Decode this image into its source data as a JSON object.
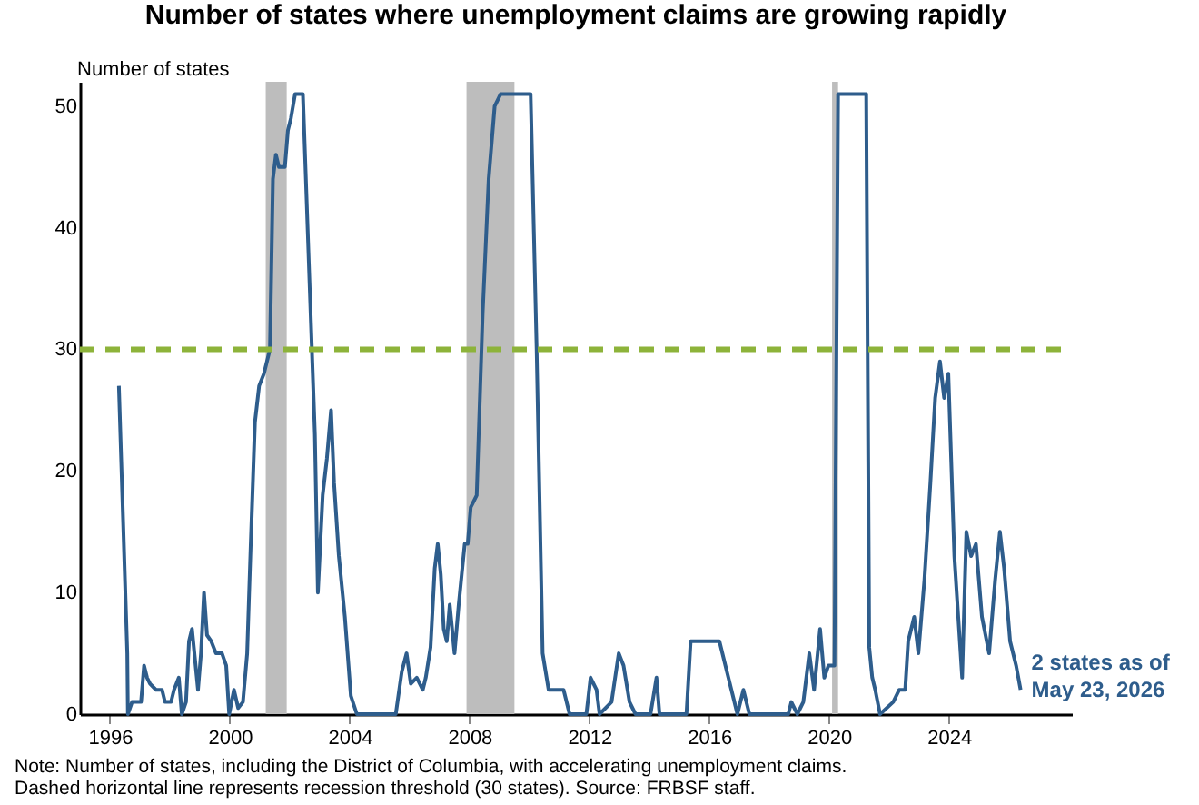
{
  "chart_data": {
    "type": "line",
    "title": "Number of states where unemployment claims are growing rapidly",
    "ylabel": "Number of states",
    "xlim": [
      1995,
      2028.1
    ],
    "xticks": [
      1996,
      2000,
      2004,
      2008,
      2012,
      2016,
      2020,
      2024
    ],
    "ylim": [
      0,
      52
    ],
    "yticks": [
      0,
      10,
      20,
      30,
      40,
      50
    ],
    "series": [
      {
        "color": "#2e5d8c",
        "line_style": "solid",
        "x": [
          1996.3,
          1996.44,
          1996.58,
          1996.6,
          1996.74,
          1997.04,
          1997.14,
          1997.24,
          1997.34,
          1997.54,
          1997.74,
          1997.84,
          1998.04,
          1998.14,
          1998.3,
          1998.4,
          1998.54,
          1998.64,
          1998.74,
          1998.94,
          1999.04,
          1999.14,
          1999.24,
          1999.38,
          1999.54,
          1999.74,
          1999.88,
          1999.98,
          2000.14,
          2000.28,
          2000.44,
          2000.58,
          2000.7,
          2000.84,
          2000.98,
          2001.14,
          2001.34,
          2001.44,
          2001.54,
          2001.64,
          2001.84,
          2001.94,
          2002.04,
          2002.18,
          2002.44,
          2002.64,
          2002.84,
          2002.94,
          2003.1,
          2003.24,
          2003.38,
          2003.48,
          2003.64,
          2003.84,
          2004.04,
          2004.24,
          2005.54,
          2005.74,
          2005.9,
          2006.04,
          2006.24,
          2006.44,
          2006.54,
          2006.7,
          2006.84,
          2006.94,
          2007.04,
          2007.14,
          2007.24,
          2007.34,
          2007.5,
          2007.64,
          2007.84,
          2007.94,
          2008.04,
          2008.24,
          2008.44,
          2008.64,
          2008.84,
          2009.04,
          2010.04,
          2010.24,
          2010.44,
          2010.64,
          2011.14,
          2011.34,
          2011.9,
          2012.04,
          2012.24,
          2012.34,
          2012.74,
          2012.98,
          2013.14,
          2013.34,
          2013.54,
          2014.04,
          2014.24,
          2014.34,
          2015.24,
          2015.38,
          2016.34,
          2016.54,
          2016.74,
          2016.94,
          2017.14,
          2017.34,
          2018.64,
          2018.74,
          2018.94,
          2019.14,
          2019.34,
          2019.5,
          2019.7,
          2019.84,
          2019.98,
          2020.18,
          2020.3,
          2021.24,
          2021.34,
          2021.44,
          2021.54,
          2021.7,
          2022.14,
          2022.34,
          2022.54,
          2022.64,
          2022.84,
          2022.98,
          2023.18,
          2023.38,
          2023.54,
          2023.7,
          2023.84,
          2023.98,
          2024.18,
          2024.44,
          2024.58,
          2024.74,
          2024.9,
          2025.1,
          2025.34,
          2025.54,
          2025.7,
          2025.84,
          2026.04,
          2026.24,
          2026.39
        ],
        "values": [
          27,
          16,
          5,
          0,
          1,
          1,
          4,
          3,
          2.5,
          2,
          2,
          1,
          1,
          2,
          3,
          0,
          1,
          6,
          7,
          2,
          5,
          10,
          6.5,
          6,
          5,
          5,
          4,
          0,
          2,
          0.5,
          1,
          5,
          14,
          24,
          27,
          28,
          30,
          44,
          46,
          45,
          45,
          48,
          49,
          51,
          51,
          37,
          23,
          10,
          18,
          21,
          25,
          19,
          13,
          8,
          1.5,
          0,
          0,
          3.5,
          5,
          2.5,
          3,
          2,
          3,
          5.5,
          12,
          14,
          11.5,
          7,
          6,
          9,
          5,
          9,
          14,
          14,
          17,
          18,
          33,
          44,
          50,
          51,
          51,
          30,
          5,
          2,
          2,
          0,
          0,
          3,
          2,
          0,
          1,
          5,
          4,
          1,
          0,
          0,
          3,
          0,
          0,
          6,
          6,
          4,
          2,
          0,
          2,
          0,
          0,
          1,
          0,
          1,
          5,
          2,
          7,
          3,
          4,
          4,
          51,
          51,
          5.5,
          3,
          2,
          0,
          1,
          2,
          2,
          6,
          8,
          5,
          11,
          19,
          26,
          29,
          26,
          28,
          13,
          3,
          15,
          13,
          14,
          8,
          5,
          11,
          15,
          12,
          6,
          4,
          2
        ]
      }
    ],
    "ref_lines": [
      {
        "axis": "y",
        "value": 30,
        "color": "#8db33a",
        "line_style": "dashed"
      }
    ],
    "bands": [
      {
        "axis": "x",
        "from": 2001.2,
        "to": 2001.9,
        "color": "#bdbdbd"
      },
      {
        "axis": "x",
        "from": 2007.9,
        "to": 2009.5,
        "color": "#bdbdbd"
      },
      {
        "axis": "x",
        "from": 2020.1,
        "to": 2020.3,
        "color": "#bdbdbd"
      }
    ],
    "annotations": [
      {
        "text": "2 states as of May 23, 2026",
        "x": 2026.39,
        "y": 2
      },
      "Note: Number of states, including the District of Columbia, with accelerating unemployment claims. Dashed horizontal line represents recession threshold (30 states). Source: FRBSF staff."
    ]
  }
}
